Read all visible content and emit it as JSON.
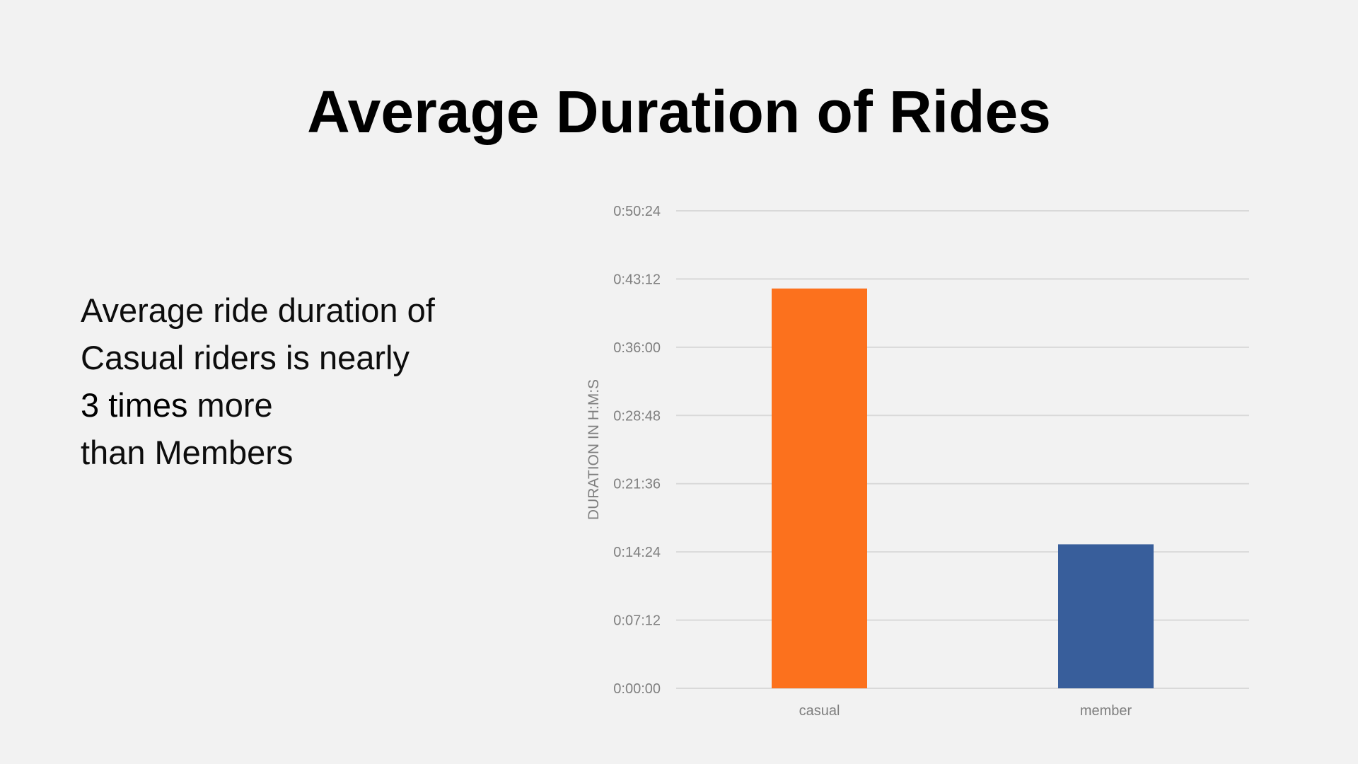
{
  "slide": {
    "title": "Average Duration of Rides",
    "body": {
      "line1": "Average ride duration of",
      "line2": "Casual riders is nearly",
      "line3_emphasis": "3 times",
      "line3_rest": " more",
      "line4": "than Members"
    }
  },
  "chart_data": {
    "type": "bar",
    "title": "",
    "xlabel": "",
    "ylabel": "DURATION IN H:M:S",
    "categories": [
      "casual",
      "member"
    ],
    "values": [
      "0:42:12",
      "0:15:12"
    ],
    "values_seconds": [
      2532,
      912
    ],
    "ylim": [
      "0:00:00",
      "0:50:24"
    ],
    "ylim_seconds": [
      0,
      3024
    ],
    "yticks": [
      "0:00:00",
      "0:07:12",
      "0:14:24",
      "0:21:36",
      "0:28:48",
      "0:36:00",
      "0:43:12",
      "0:50:24"
    ],
    "ytick_seconds": [
      0,
      432,
      864,
      1296,
      1728,
      2160,
      2592,
      3024
    ],
    "bar_colors": [
      "#fc711d",
      "#385e9b"
    ],
    "grid": true,
    "legend": "none"
  }
}
